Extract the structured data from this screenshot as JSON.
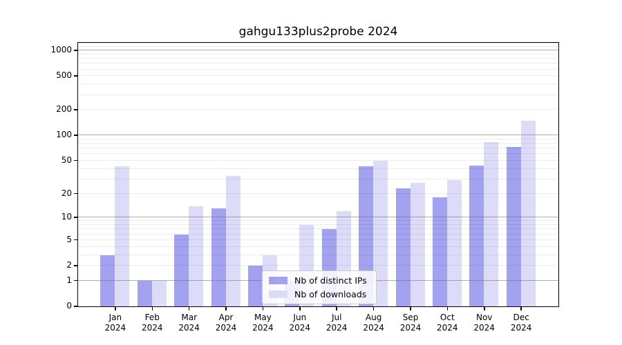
{
  "title": "gahgu133plus2probe 2024",
  "chart_data": {
    "type": "bar",
    "title": "gahgu133plus2probe 2024",
    "categories": [
      "Jan 2024",
      "Feb 2024",
      "Mar 2024",
      "Apr 2024",
      "May 2024",
      "Jun 2024",
      "Jul 2024",
      "Aug 2024",
      "Sep 2024",
      "Oct 2024",
      "Nov 2024",
      "Dec 2024"
    ],
    "series": [
      {
        "name": "Nb of distinct IPs",
        "key": "ips",
        "color": "#a2a2f0",
        "values": [
          3,
          1,
          6,
          13,
          2,
          1,
          7,
          43,
          23,
          18,
          44,
          73
        ]
      },
      {
        "name": "Nb of downloads",
        "key": "downloads",
        "color": "#dcdcf9",
        "values": [
          43,
          1,
          14,
          33,
          3,
          8,
          12,
          50,
          27,
          29,
          83,
          150
        ]
      }
    ],
    "xlabel": "",
    "ylabel": "",
    "y_ticks": [
      0,
      1,
      2,
      5,
      10,
      20,
      50,
      100,
      200,
      500,
      1000
    ],
    "y_scale": "log10(1+x)",
    "ylim": [
      0,
      1250
    ],
    "grid": "horizontal, drawn over bars, minor lines at 2-9 per decade",
    "legend_position": "lower center-right inside plot"
  },
  "colors": {
    "bar_distinct_ips": "#a2a2f0",
    "bar_downloads": "#dcdcf9",
    "grid_major": "#b0b0b0",
    "grid_minor": "#ececec",
    "axis_border": "#000000",
    "background": "#ffffff",
    "legend_border": "#cccccc"
  }
}
